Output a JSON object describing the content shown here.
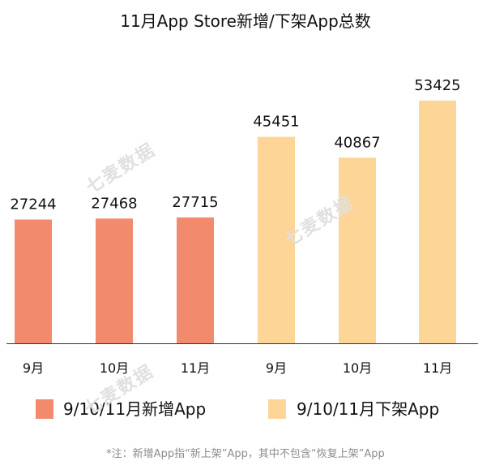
{
  "chart_data": {
    "type": "bar",
    "title": "11月App Store新增/下架App总数",
    "categories": [
      "9月",
      "10月",
      "11月",
      "9月",
      "10月",
      "11月"
    ],
    "values": [
      27244,
      27468,
      27715,
      45451,
      40867,
      53425
    ],
    "series": [
      {
        "name": "9/10/11月新增App",
        "indices": [
          0,
          1,
          2
        ],
        "color": "#f28a6e"
      },
      {
        "name": "9/10/11月下架App",
        "indices": [
          3,
          4,
          5
        ],
        "color": "#fdd597"
      }
    ],
    "ylim": [
      0,
      53425
    ],
    "grid": false,
    "legend": "bottom"
  },
  "footnote": "*注：新增App指“新上架”App，其中不包含“恢复上架”App",
  "watermark": "七麦数据",
  "colors": {
    "axis": "#333333",
    "text": "#111111"
  }
}
